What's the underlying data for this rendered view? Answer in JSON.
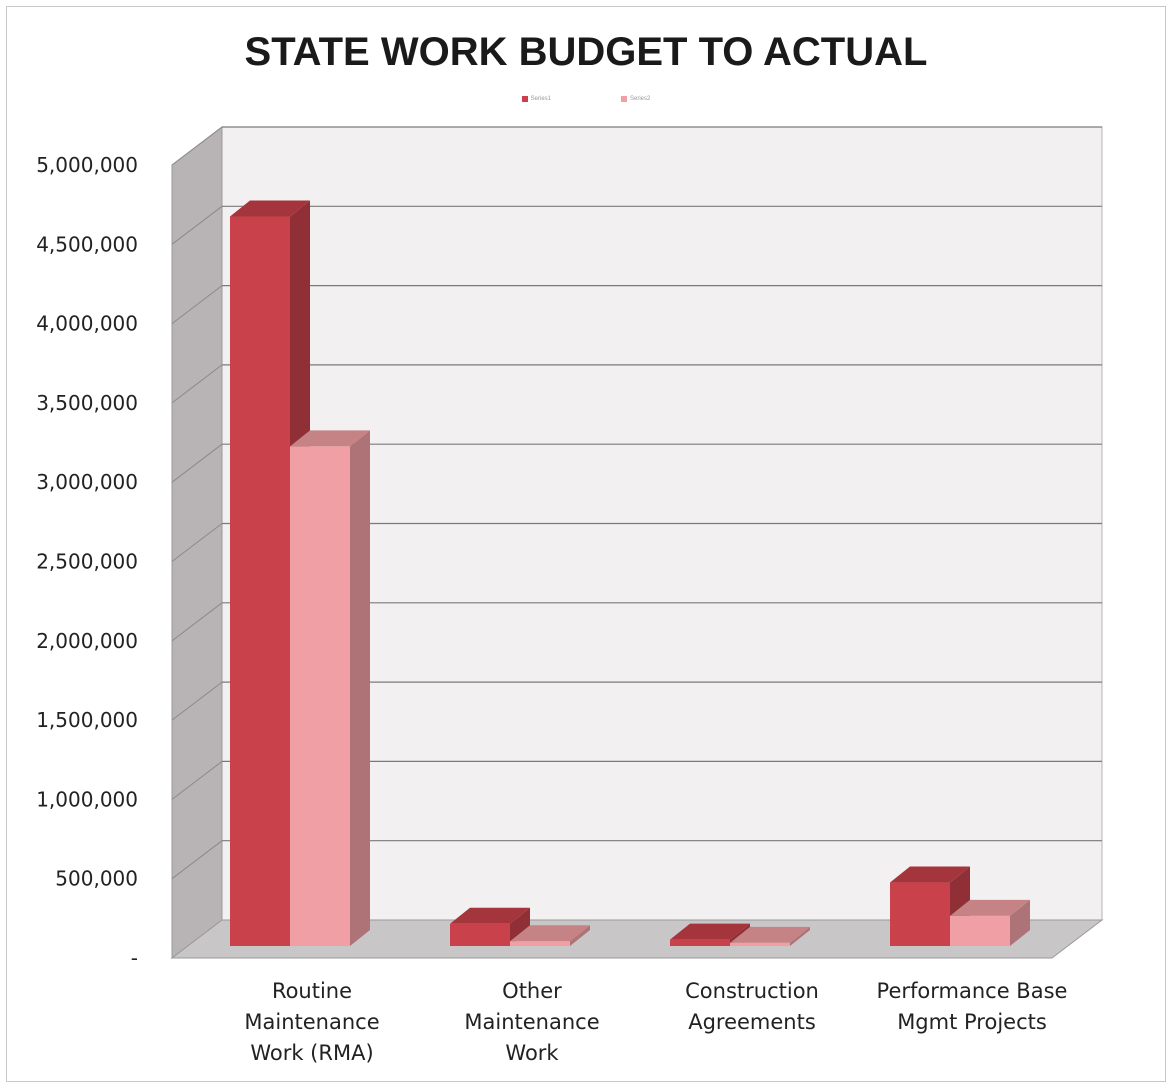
{
  "chart_data": {
    "type": "bar",
    "title": "STATE WORK BUDGET TO ACTUAL",
    "categories": [
      [
        "Routine",
        "Maintenance",
        "Work (RMA)"
      ],
      [
        "Other",
        "Maintenance",
        "Work"
      ],
      [
        "Construction",
        "Agreements"
      ],
      [
        "Performance Base",
        "Mgmt Projects"
      ]
    ],
    "series": [
      {
        "name": "Series1",
        "color": "#c8414b",
        "values": [
          4600000,
          140000,
          40000,
          400000
        ]
      },
      {
        "name": "Series2",
        "color": "#f0a0a4",
        "values": [
          3150000,
          30000,
          20000,
          190000
        ]
      }
    ],
    "yticks": [
      "5,000,000",
      "4,500,000",
      "4,000,000",
      "3,500,000",
      "3,000,000",
      "2,500,000",
      "2,000,000",
      "1,500,000",
      "1,000,000",
      "500,000",
      "-"
    ],
    "ylim": [
      0,
      5000000
    ],
    "grid": true,
    "legend": "top-center",
    "xlabel": "",
    "ylabel": ""
  }
}
